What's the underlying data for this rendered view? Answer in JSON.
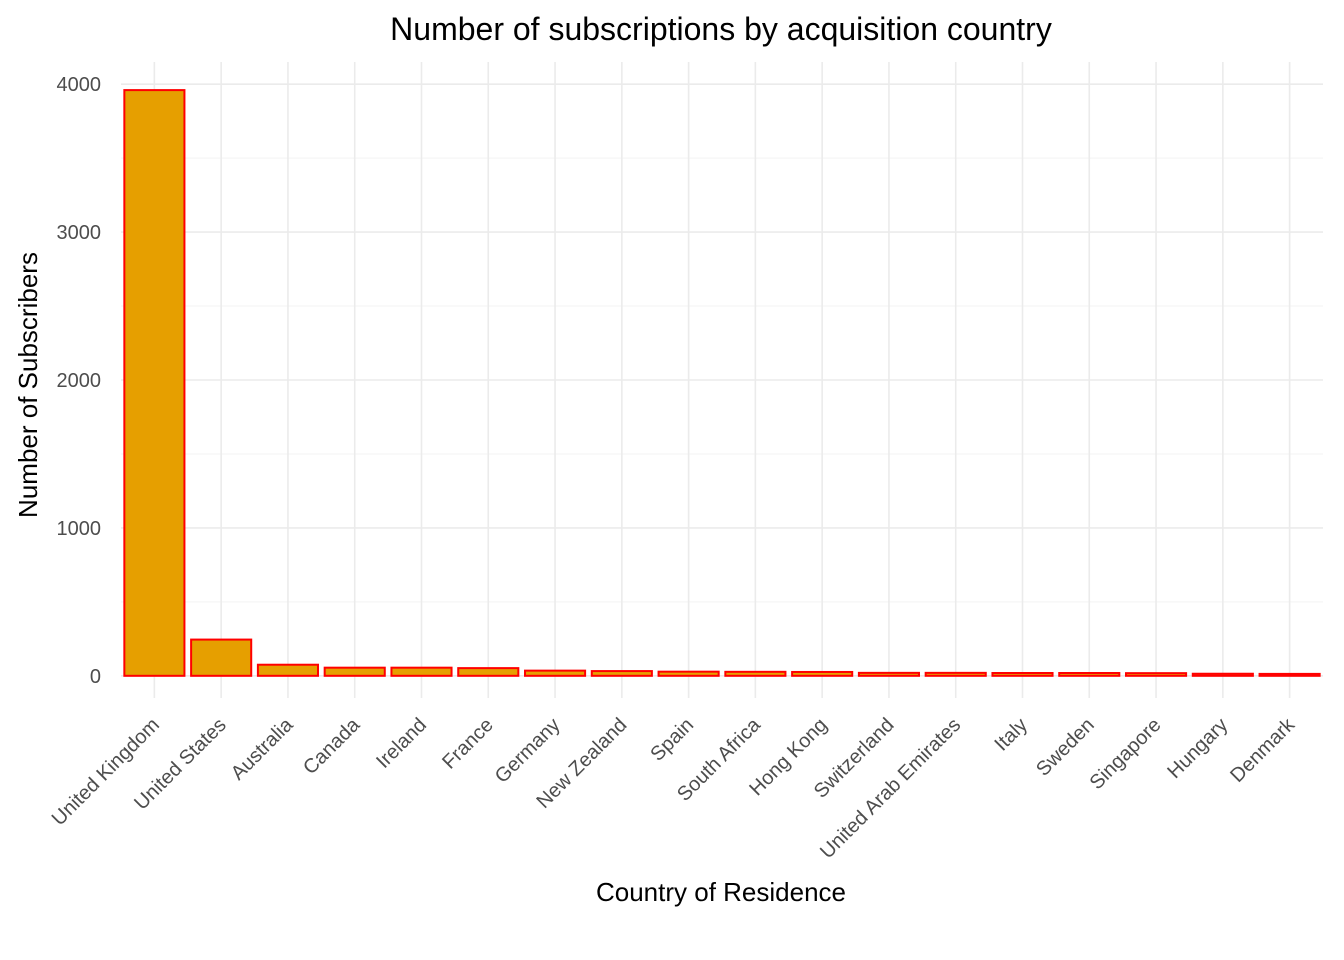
{
  "chart_data": {
    "type": "bar",
    "title": "Number of subscriptions by acquisition country",
    "xlabel": "Country of Residence",
    "ylabel": "Number of Subscribers",
    "categories": [
      "United Kingdom",
      "United States",
      "Australia",
      "Canada",
      "Ireland",
      "France",
      "Germany",
      "New Zealand",
      "Spain",
      "South Africa",
      "Hong Kong",
      "Switzerland",
      "United Arab Emirates",
      "Italy",
      "Sweden",
      "Singapore",
      "Hungary",
      "Denmark"
    ],
    "values": [
      3960,
      245,
      75,
      55,
      55,
      52,
      35,
      32,
      28,
      27,
      26,
      20,
      20,
      19,
      19,
      18,
      14,
      13
    ],
    "ylim": [
      -150,
      4150
    ],
    "yticks": [
      0,
      1000,
      2000,
      3000,
      4000
    ],
    "grid": true,
    "legend": "none",
    "colors": {
      "fill": "#E69F00",
      "outline": "#FF0000"
    }
  }
}
